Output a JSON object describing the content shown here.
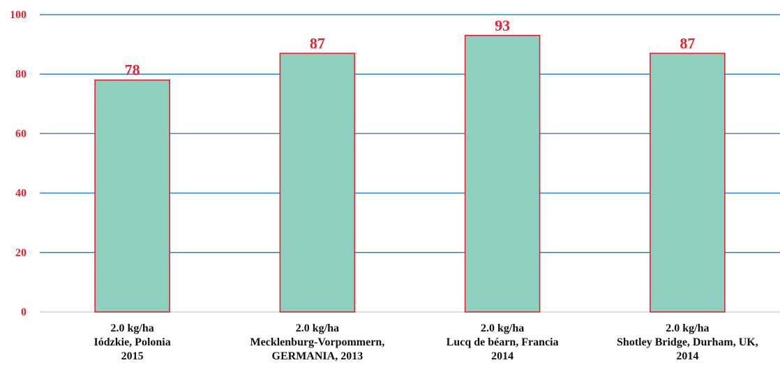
{
  "chart_data": {
    "type": "bar",
    "title": "",
    "xlabel": "",
    "ylabel": "",
    "ylim": [
      0,
      100
    ],
    "yticks": [
      "0",
      "20",
      "40",
      "60",
      "80",
      "100"
    ],
    "grid": true,
    "legend": "none",
    "categories": [
      [
        "2.0 kg/ha",
        "Iódzkie, Polonia",
        "2015"
      ],
      [
        "2.0 kg/ha",
        "Mecklenburg-Vorpommern,",
        "GERMANIA, 2013"
      ],
      [
        "2.0 kg/ha",
        "Lucq de béarn, Francia",
        "2014"
      ],
      [
        "2.0 kg/ha",
        "Shotley Bridge, Durham, UK,",
        "2014"
      ]
    ],
    "values": [
      78,
      87,
      93,
      87
    ],
    "data_labels": [
      "78",
      "87",
      "93",
      "87"
    ],
    "colors": {
      "bar_fill": "#8fcfbf",
      "bar_stroke": "#e4232d",
      "grid": "#2a86c6",
      "axis_text": "#e4232d",
      "category_text": "#111111"
    }
  }
}
